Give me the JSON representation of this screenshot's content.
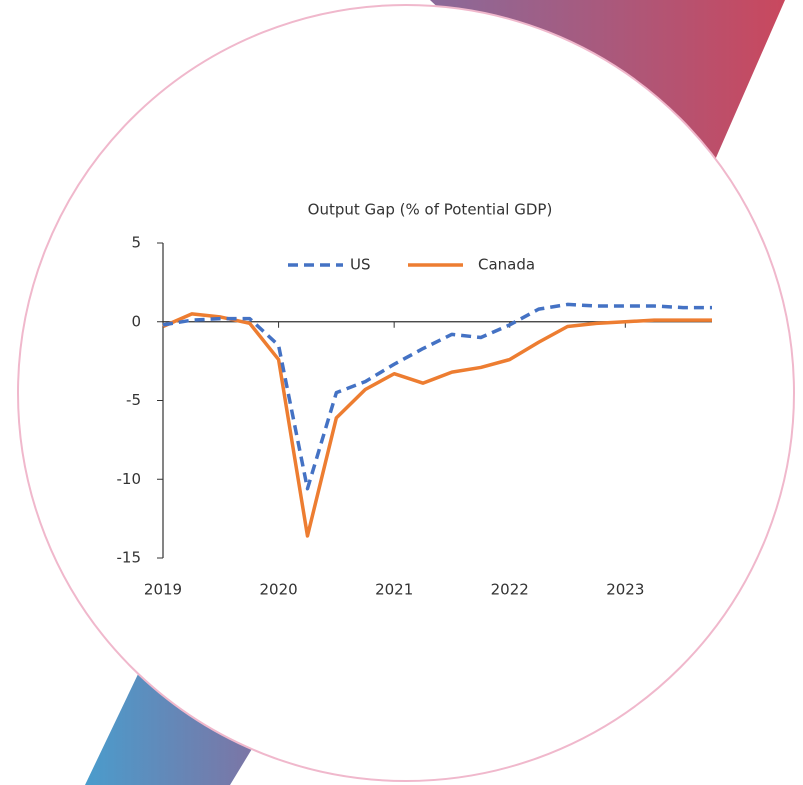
{
  "chart_data": {
    "type": "line",
    "title": "Output Gap (% of Potential GDP)",
    "x": [
      2019,
      2019.25,
      2019.5,
      2019.75,
      2020,
      2020.25,
      2020.5,
      2020.75,
      2021,
      2021.25,
      2021.5,
      2021.75,
      2022,
      2022.25,
      2022.5,
      2022.75,
      2023,
      2023.25,
      2023.5,
      2023.75
    ],
    "series": [
      {
        "name": "US",
        "color": "#4472c4",
        "dashed": true,
        "values": [
          -0.2,
          0.1,
          0.2,
          0.2,
          -1.5,
          -10.6,
          -4.5,
          -3.8,
          -2.7,
          -1.7,
          -0.8,
          -1.0,
          -0.2,
          0.8,
          1.1,
          1.0,
          1.0,
          1.0,
          0.9,
          0.9
        ]
      },
      {
        "name": "Canada",
        "color": "#ed7d31",
        "dashed": false,
        "values": [
          -0.3,
          0.5,
          0.3,
          -0.1,
          -2.4,
          -13.6,
          -6.1,
          -4.3,
          -3.3,
          -3.9,
          -3.2,
          -2.9,
          -2.4,
          -1.3,
          -0.3,
          -0.1,
          0.0,
          0.1,
          0.1,
          0.1
        ]
      }
    ],
    "xlim": [
      2019,
      2023.75
    ],
    "xticks": [
      2019,
      2020,
      2021,
      2022,
      2023
    ],
    "ylim": [
      -15,
      5
    ],
    "yticks": [
      -15,
      -10,
      -5,
      0,
      5
    ],
    "grid": false,
    "legend": "top"
  }
}
